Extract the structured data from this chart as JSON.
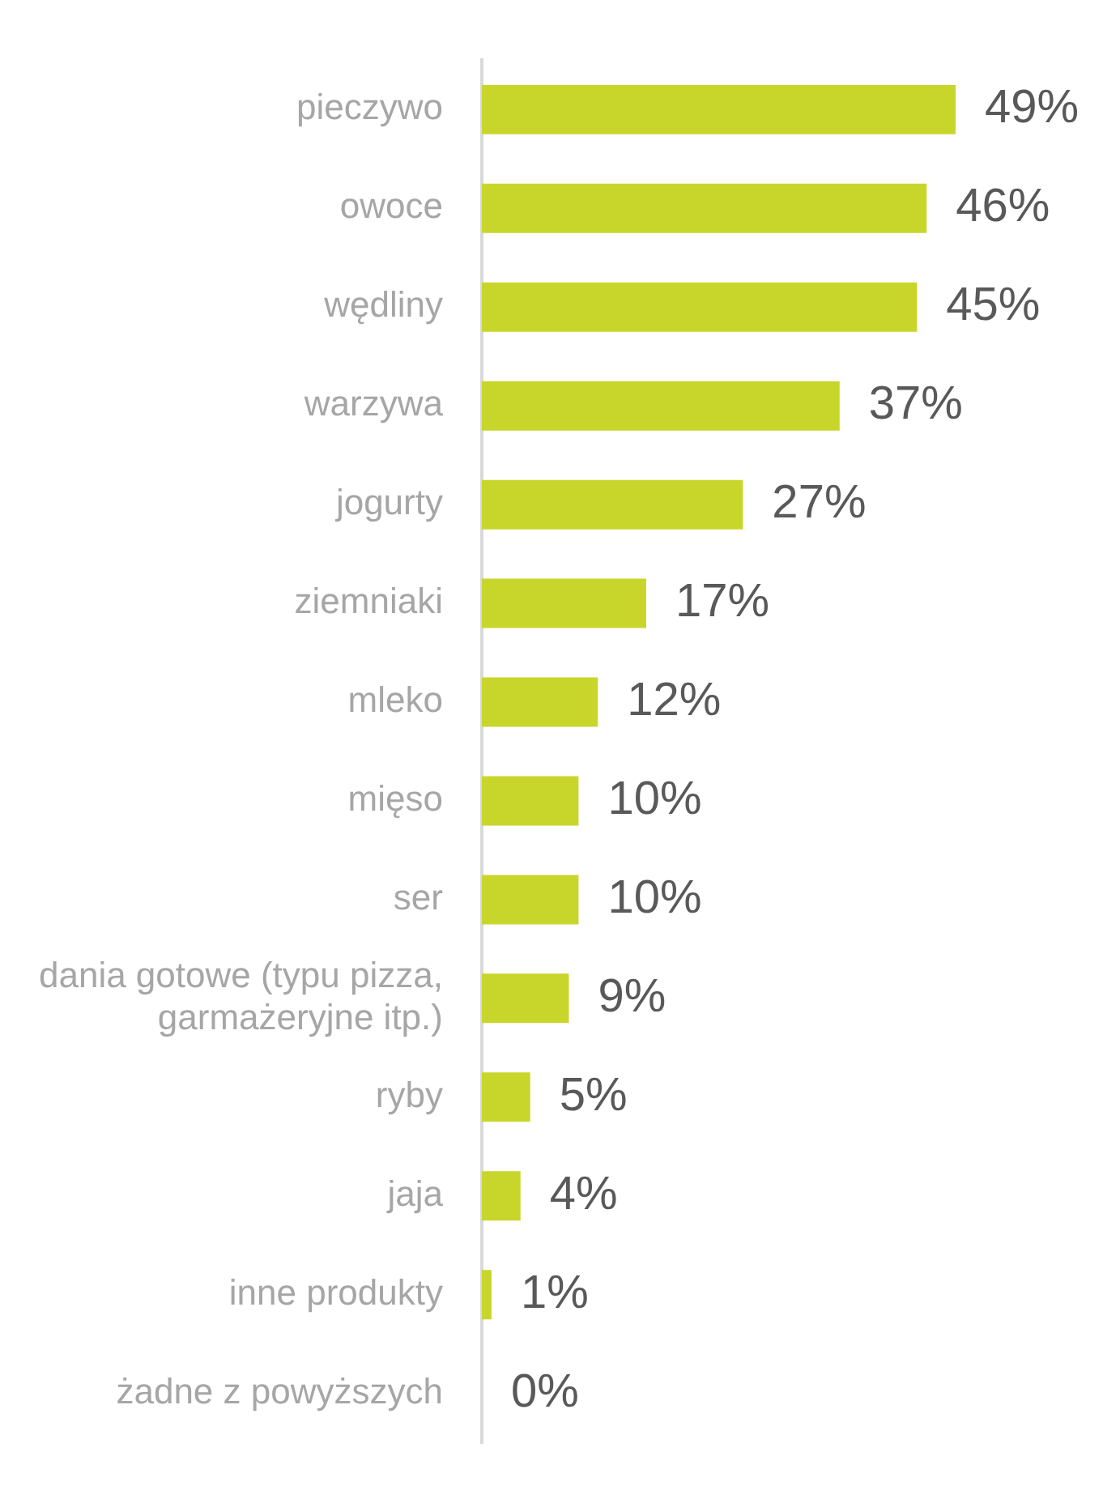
{
  "chart_data": {
    "type": "bar",
    "orientation": "horizontal",
    "categories": [
      "pieczywo",
      "owoce",
      "wędliny",
      "warzywa",
      "jogurty",
      "ziemniaki",
      "mleko",
      "mięso",
      "ser",
      "dania gotowe (typu pizza, garmażeryjne itp.)",
      "ryby",
      "jaja",
      "inne produkty",
      "żadne z powyższych"
    ],
    "values": [
      49,
      46,
      45,
      37,
      27,
      17,
      12,
      10,
      10,
      9,
      5,
      4,
      1,
      0
    ],
    "value_labels": [
      "49%",
      "46%",
      "45%",
      "37%",
      "27%",
      "17%",
      "12%",
      "10%",
      "10%",
      "9%",
      "5%",
      "4%",
      "1%",
      "0%"
    ],
    "color": "#c8d62c",
    "legend": false
  }
}
